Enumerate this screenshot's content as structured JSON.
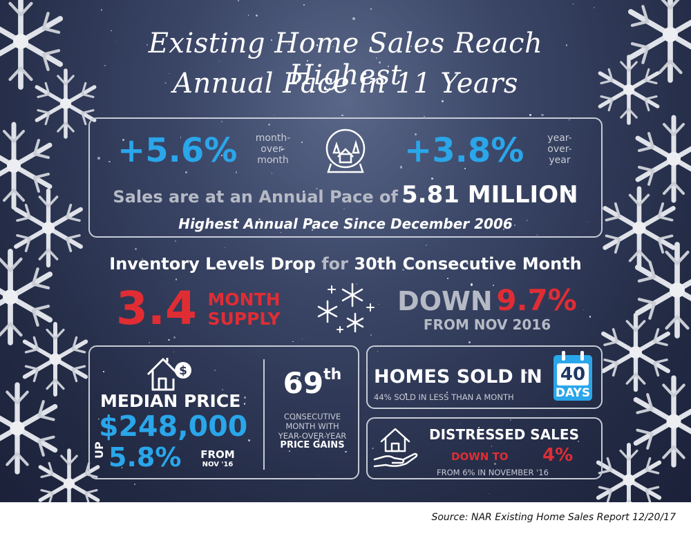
{
  "title": {
    "line1": "Existing Home Sales Reach Highest",
    "line2": "Annual Pace in 11 Years"
  },
  "sales_box": {
    "mom_value": "+5.6%",
    "mom_label_1": "month-",
    "mom_label_2": "over-",
    "mom_label_3": "month",
    "yoy_value": "+3.8%",
    "yoy_label_1": "year-",
    "yoy_label_2": "over-",
    "yoy_label_3": "year",
    "pace_text": "Sales are at an Annual Pace of",
    "pace_value": "5.81 MILLION",
    "since_text": "Highest Annual Pace Since December 2006",
    "icon": "snow-globe-icon"
  },
  "inventory": {
    "heading_1": "Inventory Levels Drop",
    "heading_2": "for",
    "heading_3": "30th Consecutive Month",
    "supply_value": "3.4",
    "supply_label_1": "MONTH",
    "supply_label_2": "SUPPLY",
    "down_label": "DOWN",
    "down_value": "9.7%",
    "from_text": "FROM NOV 2016",
    "icon": "snowflakes-icon"
  },
  "median_box": {
    "icon": "house-dollar-icon",
    "label": "MEDIAN PRICE",
    "price": "$248,000",
    "up_label": "UP",
    "up_value": "5.8%",
    "from_label": "FROM",
    "from_date": "NOV '16",
    "gains_value": "69",
    "gains_suffix": "th",
    "gains_line1": "CONSECUTIVE",
    "gains_line2": "MONTH WITH",
    "gains_line3": "YEAR-OVER-YEAR",
    "gains_line4": "PRICE GAINS"
  },
  "homes_sold": {
    "heading": "HOMES SOLD IN",
    "sub": "44% SOLD IN LESS THAN A MONTH",
    "cal_value": "40",
    "cal_label": "DAYS",
    "icon": "calendar-icon"
  },
  "distressed": {
    "icon": "house-in-hand-icon",
    "heading": "DISTRESSED SALES",
    "down_label": "DOWN TO",
    "down_value": "4%",
    "from_text": "FROM 6% IN NOVEMBER '16"
  },
  "source": "Source: NAR Existing Home Sales Report 12/20/17",
  "colors": {
    "background": "#2a3350",
    "blue": "#2aa6ea",
    "red": "#e02d34",
    "border": "#c7ccd6"
  }
}
